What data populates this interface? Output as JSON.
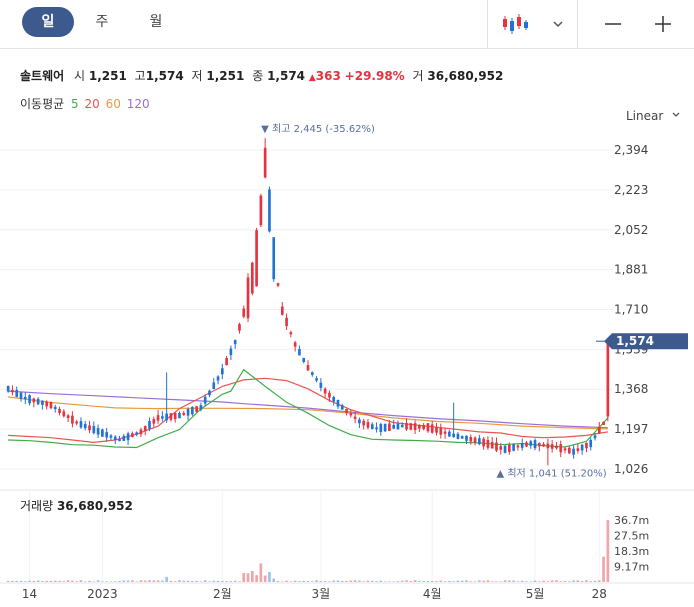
{
  "tabs": [
    {
      "label": "일",
      "active": true
    },
    {
      "label": "주",
      "active": false
    },
    {
      "label": "월",
      "active": false
    }
  ],
  "toolbar": {
    "chart_type_icon": "candlestick-icon",
    "dropdown_icon": "chevron-down-icon",
    "zoom_out_icon": "minus-icon",
    "zoom_in_icon": "plus-icon"
  },
  "stock": {
    "name": "솔트웨어",
    "open_label": "시",
    "open": "1,251",
    "high_label": "고",
    "high": "1,574",
    "low_label": "저",
    "low": "1,251",
    "close_label": "종",
    "close": "1,574",
    "change_arrow": "▲",
    "change": "363",
    "change_pct": "+29.98%",
    "volume_label": "거",
    "volume": "36,680,952"
  },
  "moving_average": {
    "label": "이동평균",
    "periods": [
      {
        "value": "5",
        "color": "#3fae49"
      },
      {
        "value": "20",
        "color": "#e8564f"
      },
      {
        "value": "60",
        "color": "#e89a43"
      },
      {
        "value": "120",
        "color": "#9b6fd6"
      }
    ]
  },
  "scale_label": "Linear",
  "colors": {
    "up": "#e5333f",
    "down": "#1f73d8",
    "ma5": "#3fae49",
    "ma20": "#e8564f",
    "ma60": "#e89a43",
    "ma120": "#9b6fd6",
    "current_price_tag": "#3d5a8f"
  },
  "chart_data": {
    "type": "candlestick",
    "price_axis_ticks": [
      2394,
      2223,
      2052,
      1881,
      1710,
      1539,
      1368,
      1197,
      1026
    ],
    "price_axis_labels": [
      "2,394",
      "2,223",
      "2,052",
      "1,881",
      "1,710",
      "1,539",
      "1,368",
      "1,197",
      "1,026"
    ],
    "ylim": [
      970,
      2480
    ],
    "current_price": "1,574",
    "current_price_value": 1574,
    "high_annotation": {
      "arrow": "▼",
      "label": "최고",
      "value": "2,445",
      "pct": "(-35.62%)",
      "price": 2445
    },
    "low_annotation": {
      "arrow": "▲",
      "label": "최저",
      "value": "1,041",
      "pct": "(51.20%)",
      "price": 1041
    },
    "x_axis_labels": [
      "14",
      "2023",
      "2월",
      "3월",
      "4월",
      "5월",
      "28"
    ],
    "volume_label": "거래량",
    "volume_value": "36,680,952",
    "volume_axis_labels": [
      "36.7m",
      "27.5m",
      "18.3m",
      "9.17m"
    ],
    "volume_axis_values": [
      36.7,
      27.5,
      18.3,
      9.17
    ],
    "ma_curves": {
      "ma120": [
        [
          0,
          1360
        ],
        [
          10,
          1349
        ],
        [
          20,
          1340
        ],
        [
          30,
          1331
        ],
        [
          40,
          1322
        ],
        [
          50,
          1313
        ],
        [
          55,
          1306
        ],
        [
          60,
          1300
        ],
        [
          70,
          1287
        ],
        [
          80,
          1270
        ],
        [
          90,
          1255
        ],
        [
          100,
          1242
        ],
        [
          110,
          1232
        ],
        [
          120,
          1220
        ],
        [
          130,
          1210
        ],
        [
          140,
          1203
        ]
      ],
      "ma60": [
        [
          0,
          1335
        ],
        [
          10,
          1311
        ],
        [
          20,
          1295
        ],
        [
          25,
          1288
        ],
        [
          30,
          1286
        ],
        [
          35,
          1285
        ],
        [
          40,
          1286
        ],
        [
          50,
          1286
        ],
        [
          60,
          1285
        ],
        [
          70,
          1280
        ],
        [
          80,
          1265
        ],
        [
          90,
          1245
        ],
        [
          100,
          1230
        ],
        [
          110,
          1222
        ],
        [
          120,
          1210
        ],
        [
          130,
          1203
        ],
        [
          140,
          1198
        ]
      ],
      "ma20": [
        [
          0,
          1170
        ],
        [
          10,
          1160
        ],
        [
          15,
          1150
        ],
        [
          20,
          1140
        ],
        [
          25,
          1150
        ],
        [
          30,
          1175
        ],
        [
          35,
          1210
        ],
        [
          40,
          1285
        ],
        [
          50,
          1380
        ],
        [
          55,
          1408
        ],
        [
          60,
          1415
        ],
        [
          65,
          1405
        ],
        [
          70,
          1370
        ],
        [
          75,
          1320
        ],
        [
          80,
          1280
        ],
        [
          90,
          1225
        ],
        [
          100,
          1205
        ],
        [
          110,
          1185
        ],
        [
          115,
          1180
        ],
        [
          120,
          1165
        ],
        [
          125,
          1160
        ],
        [
          130,
          1163
        ],
        [
          135,
          1170
        ],
        [
          140,
          1185
        ]
      ],
      "ma5": [
        [
          0,
          1150
        ],
        [
          5,
          1147
        ],
        [
          10,
          1140
        ],
        [
          15,
          1130
        ],
        [
          20,
          1128
        ],
        [
          25,
          1120
        ],
        [
          30,
          1118
        ],
        [
          35,
          1160
        ],
        [
          40,
          1195
        ],
        [
          45,
          1283
        ],
        [
          50,
          1346
        ],
        [
          52,
          1360
        ],
        [
          55,
          1452
        ],
        [
          60,
          1380
        ],
        [
          65,
          1312
        ],
        [
          70,
          1265
        ],
        [
          75,
          1212
        ],
        [
          80,
          1173
        ],
        [
          85,
          1153
        ],
        [
          90,
          1150
        ],
        [
          95,
          1148
        ],
        [
          100,
          1145
        ],
        [
          105,
          1140
        ],
        [
          110,
          1138
        ],
        [
          115,
          1130
        ],
        [
          120,
          1135
        ],
        [
          125,
          1126
        ],
        [
          130,
          1120
        ],
        [
          135,
          1144
        ],
        [
          140,
          1245
        ]
      ]
    }
  }
}
